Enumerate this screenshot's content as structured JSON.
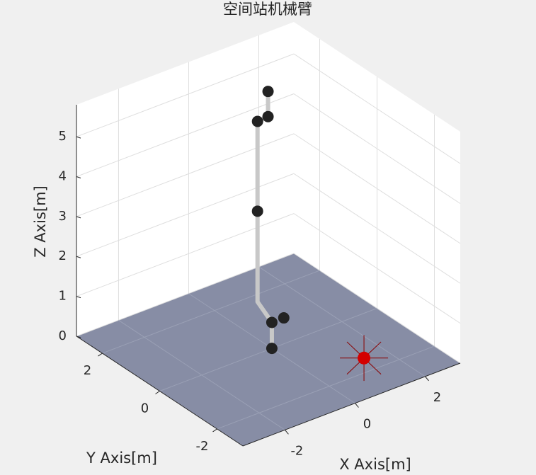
{
  "chart_data": {
    "type": "line3d",
    "title": "空间站机械臂",
    "xlabel": "X Axis[m]",
    "ylabel": "Y Axis[m]",
    "zlabel": "Z Axis[m]",
    "xlim": [
      -3.2,
      3.0
    ],
    "ylim": [
      -2.9,
      2.9
    ],
    "zlim": [
      0,
      5.8
    ],
    "xticks": [
      -2,
      0,
      2
    ],
    "yticks": [
      -2,
      0,
      2
    ],
    "zticks": [
      0,
      1,
      2,
      3,
      4,
      5
    ],
    "grid": true,
    "floor_color": "#878da5",
    "series": [
      {
        "name": "arm",
        "kind": "line",
        "color": "#c8c8c8",
        "x": [
          0,
          0,
          0,
          0,
          0.3,
          0.3
        ],
        "y": [
          0,
          0,
          0.5,
          0.5,
          0.5,
          0.5
        ],
        "z": [
          0,
          0.65,
          0.93,
          5.45,
          5.47,
          6.1
        ]
      },
      {
        "name": "joints",
        "kind": "points",
        "color": "#222222",
        "x": [
          0,
          0,
          0.34,
          0,
          0,
          0.3,
          0.3
        ],
        "y": [
          0,
          0,
          0,
          0.5,
          0.5,
          0.5,
          0.5
        ],
        "z": [
          0,
          0.65,
          0.65,
          3.2,
          5.45,
          5.47,
          6.1
        ]
      },
      {
        "name": "target",
        "kind": "star",
        "color": "#d40000",
        "x": [
          1.4
        ],
        "y": [
          -1.5
        ],
        "z": [
          0
        ]
      }
    ]
  }
}
